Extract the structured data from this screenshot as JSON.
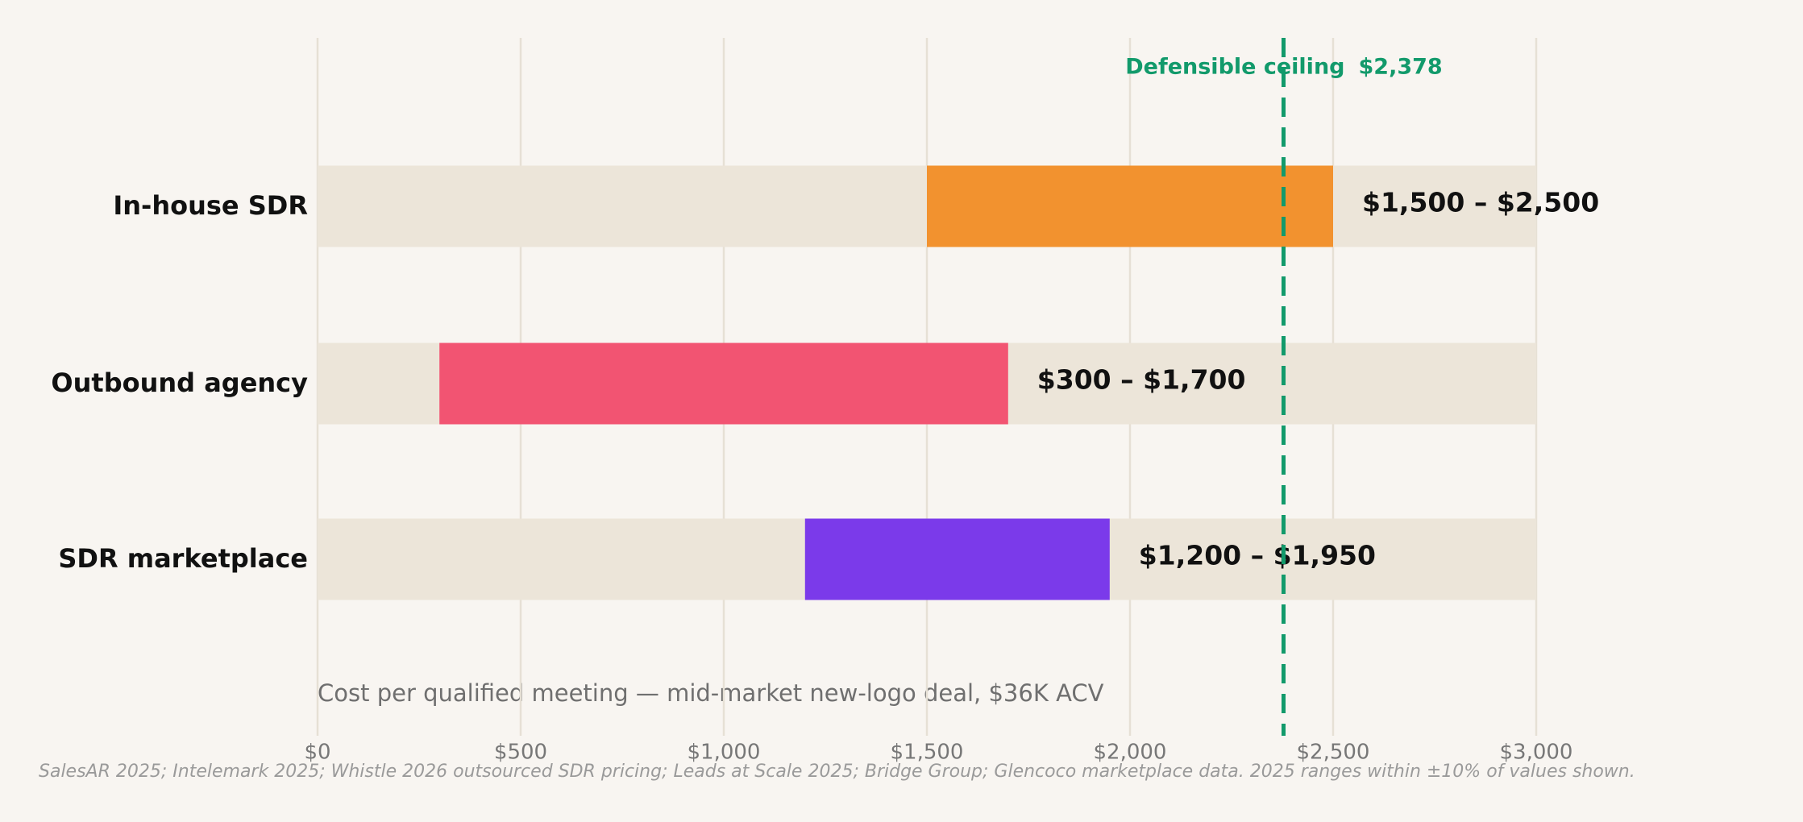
{
  "chart_data": {
    "type": "range-bar",
    "categories": [
      "In-house SDR",
      "Outbound agency",
      "SDR marketplace"
    ],
    "low": [
      1500,
      300,
      1200
    ],
    "high": [
      2500,
      1700,
      1950
    ],
    "value_labels": [
      "$1,500 – $2,500",
      "$300 – $1,700",
      "$1,200 – $1,950"
    ],
    "colors": [
      "#f2922f",
      "#f25472",
      "#7b3aea"
    ],
    "track_color": "#ece5d9",
    "xlim": [
      0,
      3000
    ],
    "xticks": [
      {
        "value": 0,
        "label": "$0"
      },
      {
        "value": 500,
        "label": "$500"
      },
      {
        "value": 1000,
        "label": "$1,000"
      },
      {
        "value": 1500,
        "label": "$1,500"
      },
      {
        "value": 2000,
        "label": "$2,000"
      },
      {
        "value": 2500,
        "label": "$2,500"
      },
      {
        "value": 3000,
        "label": "$3,000"
      }
    ],
    "grid": true,
    "xlabel": "Cost per qualified meeting — mid-market new-logo deal, $36K ACV",
    "reference_line": {
      "label": "Defensible ceiling",
      "value": 2378,
      "value_label": "$2,378",
      "color": "#129a6b"
    },
    "source": "SalesAR 2025; Intelemark 2025; Whistle 2026 outsourced SDR pricing; Leads at Scale 2025; Bridge Group; Glencoco marketplace data. 2025 ranges within ±10% of values shown."
  }
}
